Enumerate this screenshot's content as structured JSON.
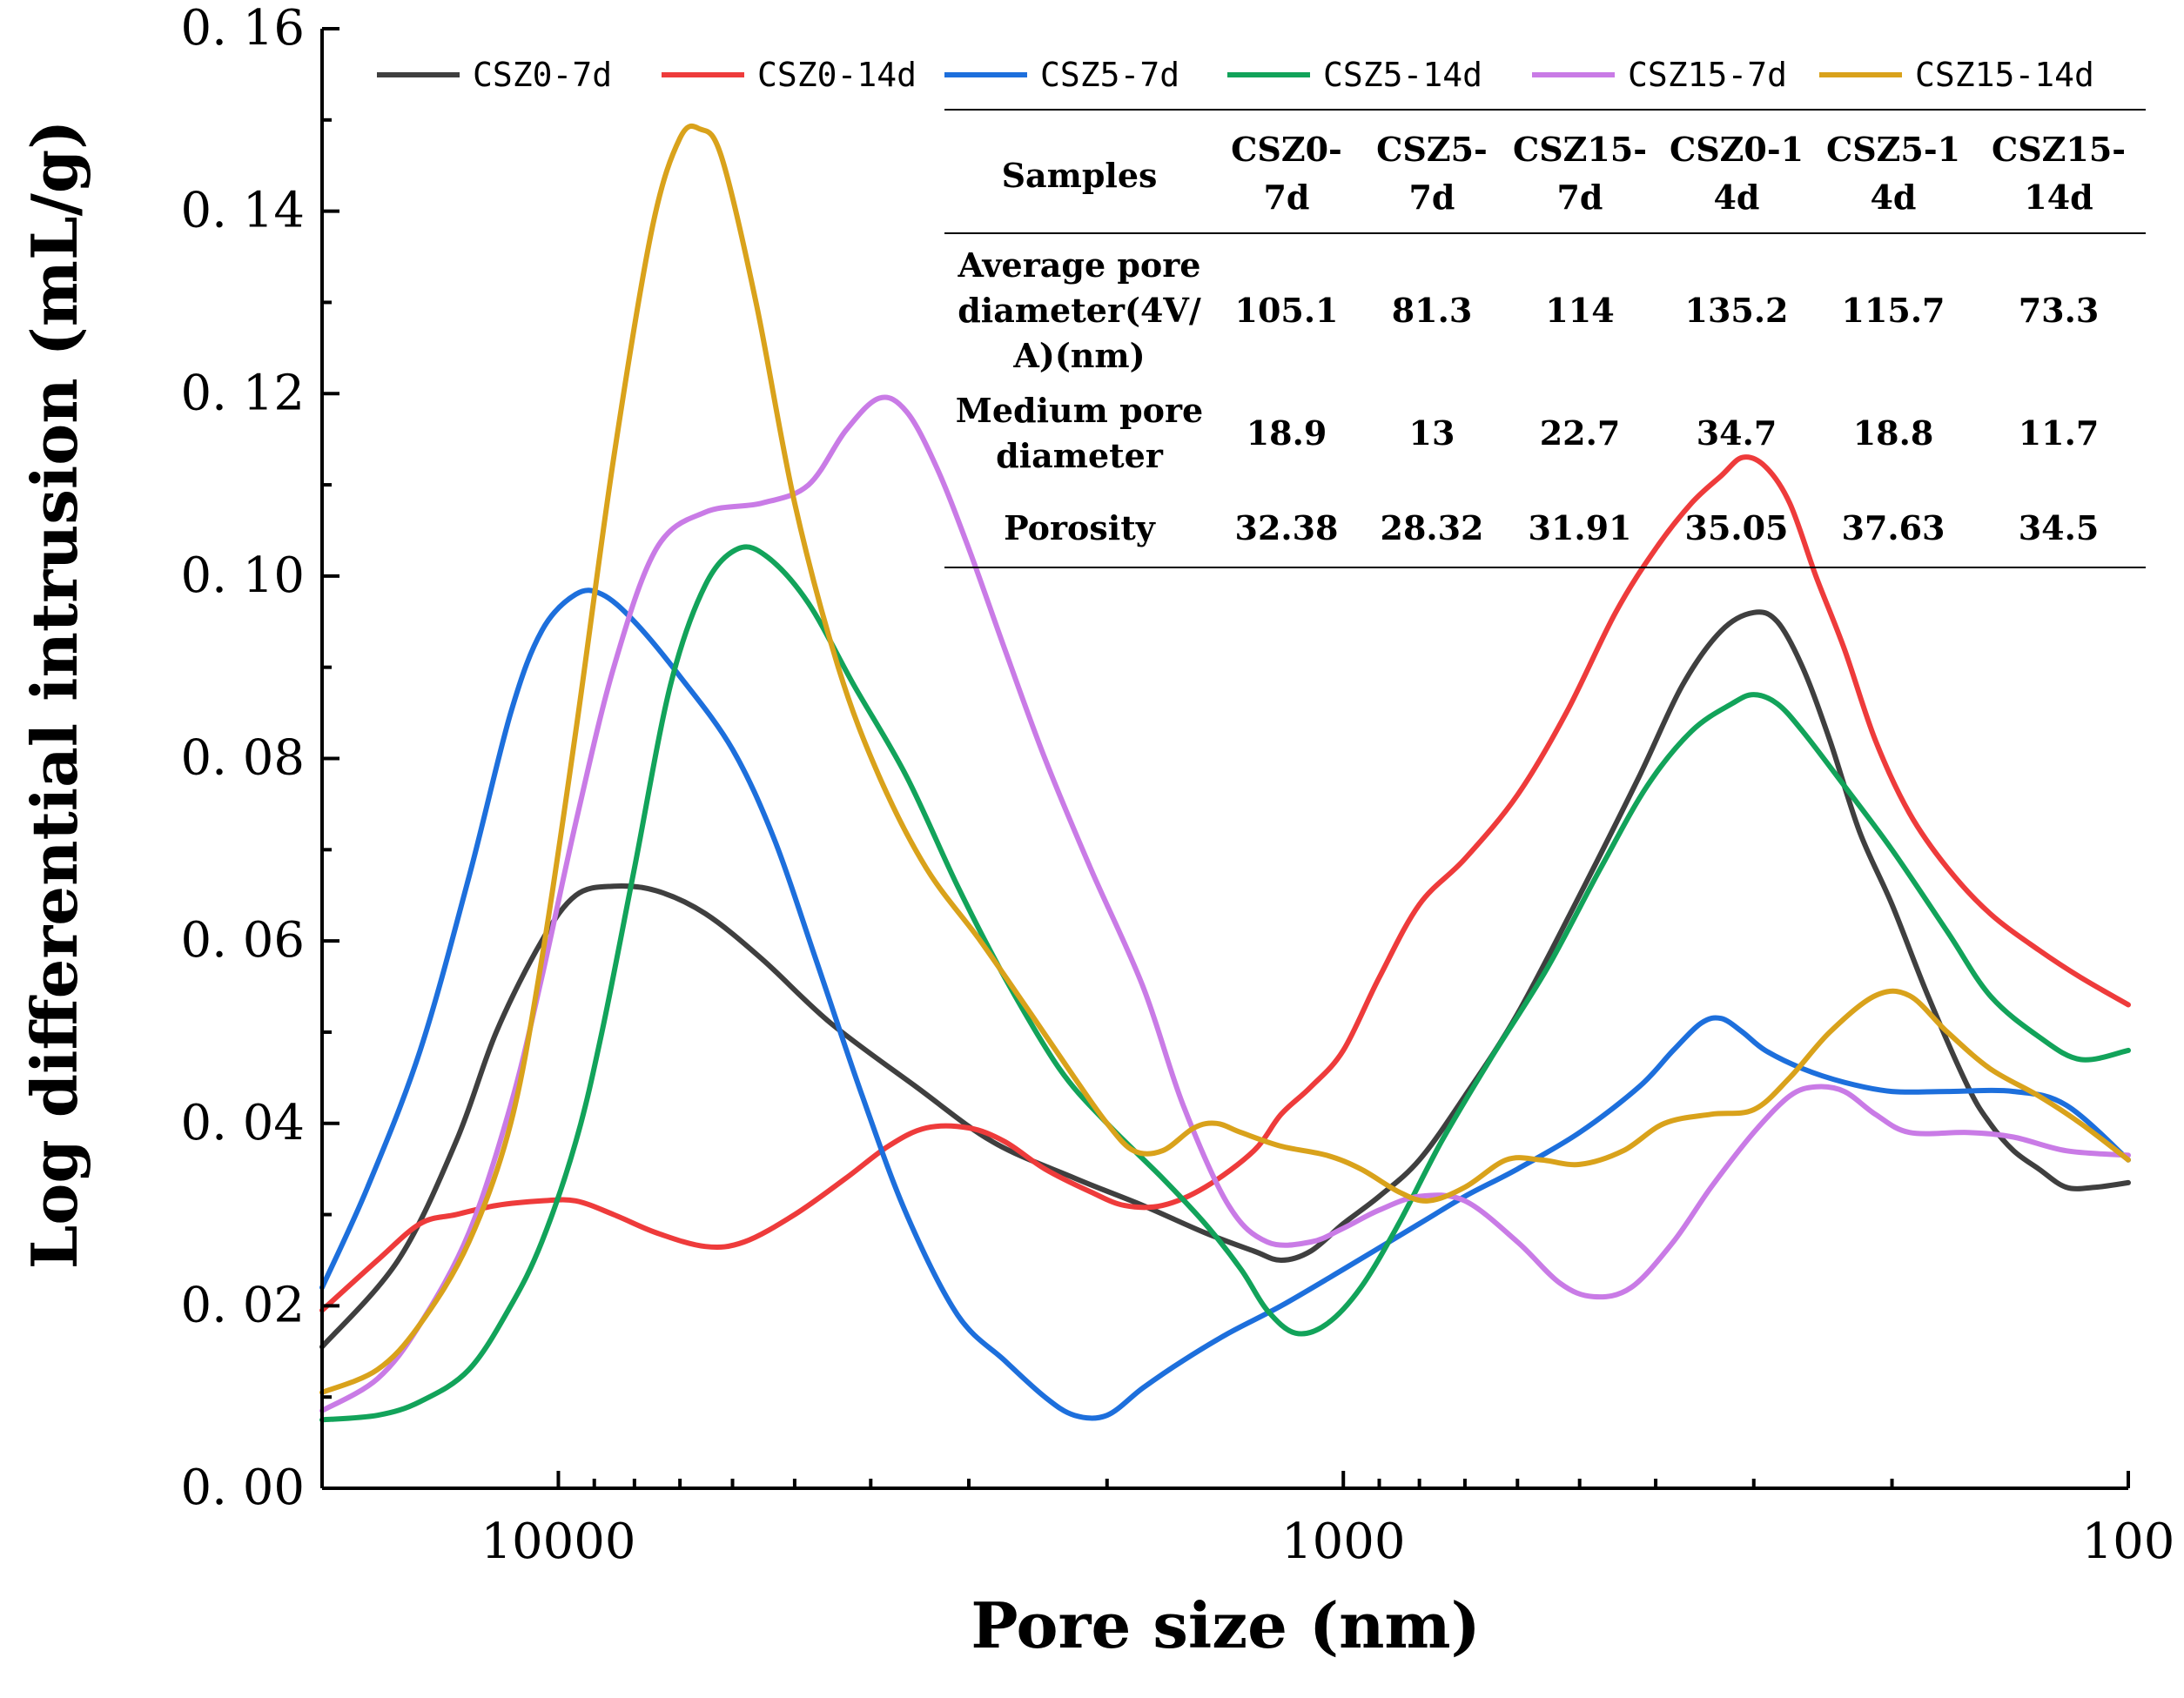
{
  "chart_data": {
    "type": "line",
    "xlabel": "Pore size (nm)",
    "ylabel": "Log differential intrusion (mL/g)",
    "x_scale": "log",
    "x_reversed": true,
    "xlim": [
      20000,
      100
    ],
    "ylim": [
      0,
      0.16
    ],
    "x_ticks": [
      10000,
      1000,
      100
    ],
    "x_tick_labels": [
      "10000",
      "1000",
      "100"
    ],
    "y_ticks": [
      0,
      0.02,
      0.04,
      0.06,
      0.08,
      0.1,
      0.12,
      0.14,
      0.16
    ],
    "y_tick_labels": [
      "0. 00",
      "0. 02",
      "0. 04",
      "0. 06",
      "0. 08",
      "0. 10",
      "0. 12",
      "0. 14",
      "0. 16"
    ],
    "grid": false,
    "legend_position": "top",
    "series": [
      {
        "name": "CSZ0-7d",
        "color": "#3f3f3f",
        "points": [
          [
            20000,
            0.0155
          ],
          [
            16000,
            0.025
          ],
          [
            13500,
            0.038
          ],
          [
            12000,
            0.05
          ],
          [
            10500,
            0.06
          ],
          [
            9500,
            0.065
          ],
          [
            8500,
            0.066
          ],
          [
            7500,
            0.0655
          ],
          [
            6500,
            0.063
          ],
          [
            5500,
            0.058
          ],
          [
            4500,
            0.051
          ],
          [
            3500,
            0.044
          ],
          [
            2800,
            0.038
          ],
          [
            2200,
            0.034
          ],
          [
            1800,
            0.031
          ],
          [
            1500,
            0.028
          ],
          [
            1300,
            0.026
          ],
          [
            1200,
            0.025
          ],
          [
            1100,
            0.026
          ],
          [
            1000,
            0.029
          ],
          [
            900,
            0.032
          ],
          [
            800,
            0.036
          ],
          [
            700,
            0.043
          ],
          [
            600,
            0.052
          ],
          [
            500,
            0.065
          ],
          [
            420,
            0.078
          ],
          [
            370,
            0.088
          ],
          [
            330,
            0.094
          ],
          [
            300,
            0.096
          ],
          [
            280,
            0.095
          ],
          [
            260,
            0.09
          ],
          [
            240,
            0.082
          ],
          [
            220,
            0.072
          ],
          [
            200,
            0.064
          ],
          [
            180,
            0.054
          ],
          [
            160,
            0.044
          ],
          [
            150,
            0.04
          ],
          [
            140,
            0.037
          ],
          [
            130,
            0.035
          ],
          [
            120,
            0.033
          ],
          [
            110,
            0.033
          ],
          [
            100,
            0.0335
          ]
        ]
      },
      {
        "name": "CSZ0-14d",
        "color": "#ee3b3b",
        "points": [
          [
            20000,
            0.0195
          ],
          [
            17000,
            0.025
          ],
          [
            15000,
            0.029
          ],
          [
            13500,
            0.03
          ],
          [
            12000,
            0.031
          ],
          [
            10500,
            0.0315
          ],
          [
            9500,
            0.0315
          ],
          [
            8500,
            0.03
          ],
          [
            7500,
            0.028
          ],
          [
            6500,
            0.0265
          ],
          [
            5800,
            0.027
          ],
          [
            5000,
            0.03
          ],
          [
            4300,
            0.034
          ],
          [
            3800,
            0.0375
          ],
          [
            3400,
            0.0395
          ],
          [
            3000,
            0.0395
          ],
          [
            2700,
            0.038
          ],
          [
            2400,
            0.035
          ],
          [
            2100,
            0.0325
          ],
          [
            1900,
            0.031
          ],
          [
            1700,
            0.031
          ],
          [
            1500,
            0.033
          ],
          [
            1300,
            0.037
          ],
          [
            1200,
            0.041
          ],
          [
            1100,
            0.044
          ],
          [
            1000,
            0.048
          ],
          [
            900,
            0.056
          ],
          [
            800,
            0.064
          ],
          [
            700,
            0.069
          ],
          [
            600,
            0.076
          ],
          [
            520,
            0.085
          ],
          [
            450,
            0.096
          ],
          [
            400,
            0.103
          ],
          [
            360,
            0.108
          ],
          [
            330,
            0.111
          ],
          [
            310,
            0.113
          ],
          [
            290,
            0.112
          ],
          [
            270,
            0.108
          ],
          [
            250,
            0.1
          ],
          [
            230,
            0.092
          ],
          [
            210,
            0.082
          ],
          [
            190,
            0.074
          ],
          [
            170,
            0.068
          ],
          [
            150,
            0.063
          ],
          [
            130,
            0.059
          ],
          [
            115,
            0.056
          ],
          [
            100,
            0.053
          ]
        ]
      },
      {
        "name": "CSZ5-7d",
        "color": "#1d6fdc",
        "points": [
          [
            20000,
            0.022
          ],
          [
            17500,
            0.033
          ],
          [
            15000,
            0.048
          ],
          [
            13000,
            0.067
          ],
          [
            11500,
            0.085
          ],
          [
            10500,
            0.094
          ],
          [
            9500,
            0.098
          ],
          [
            8800,
            0.098
          ],
          [
            8000,
            0.095
          ],
          [
            7000,
            0.089
          ],
          [
            6000,
            0.081
          ],
          [
            5300,
            0.071
          ],
          [
            4700,
            0.058
          ],
          [
            4100,
            0.043
          ],
          [
            3600,
            0.03
          ],
          [
            3100,
            0.019
          ],
          [
            2700,
            0.014
          ],
          [
            2400,
            0.01
          ],
          [
            2200,
            0.008
          ],
          [
            2000,
            0.008
          ],
          [
            1800,
            0.011
          ],
          [
            1600,
            0.014
          ],
          [
            1400,
            0.017
          ],
          [
            1200,
            0.02
          ],
          [
            1000,
            0.024
          ],
          [
            800,
            0.029
          ],
          [
            700,
            0.032
          ],
          [
            600,
            0.035
          ],
          [
            500,
            0.039
          ],
          [
            420,
            0.044
          ],
          [
            380,
            0.048
          ],
          [
            350,
            0.051
          ],
          [
            330,
            0.0515
          ],
          [
            310,
            0.05
          ],
          [
            290,
            0.048
          ],
          [
            260,
            0.046
          ],
          [
            230,
            0.0445
          ],
          [
            200,
            0.0435
          ],
          [
            170,
            0.0435
          ],
          [
            140,
            0.0435
          ],
          [
            120,
            0.042
          ],
          [
            100,
            0.036
          ]
        ]
      },
      {
        "name": "CSZ5-14d",
        "color": "#12a35a",
        "points": [
          [
            20000,
            0.0075
          ],
          [
            17000,
            0.008
          ],
          [
            15000,
            0.0095
          ],
          [
            13000,
            0.013
          ],
          [
            11500,
            0.02
          ],
          [
            10500,
            0.027
          ],
          [
            9500,
            0.038
          ],
          [
            8800,
            0.05
          ],
          [
            8000,
            0.068
          ],
          [
            7200,
            0.088
          ],
          [
            6500,
            0.099
          ],
          [
            5900,
            0.103
          ],
          [
            5400,
            0.102
          ],
          [
            4800,
            0.097
          ],
          [
            4200,
            0.088
          ],
          [
            3600,
            0.078
          ],
          [
            3100,
            0.066
          ],
          [
            2700,
            0.056
          ],
          [
            2300,
            0.046
          ],
          [
            2000,
            0.04
          ],
          [
            1700,
            0.034
          ],
          [
            1500,
            0.029
          ],
          [
            1350,
            0.024
          ],
          [
            1250,
            0.0195
          ],
          [
            1150,
            0.017
          ],
          [
            1050,
            0.018
          ],
          [
            950,
            0.022
          ],
          [
            850,
            0.029
          ],
          [
            750,
            0.038
          ],
          [
            650,
            0.047
          ],
          [
            550,
            0.057
          ],
          [
            470,
            0.068
          ],
          [
            410,
            0.077
          ],
          [
            360,
            0.083
          ],
          [
            320,
            0.086
          ],
          [
            300,
            0.087
          ],
          [
            280,
            0.086
          ],
          [
            260,
            0.083
          ],
          [
            230,
            0.077
          ],
          [
            200,
            0.07
          ],
          [
            170,
            0.061
          ],
          [
            150,
            0.054
          ],
          [
            130,
            0.0495
          ],
          [
            115,
            0.047
          ],
          [
            100,
            0.048
          ]
        ]
      },
      {
        "name": "CSZ15-7d",
        "color": "#c97be6",
        "points": [
          [
            20000,
            0.0085
          ],
          [
            17000,
            0.012
          ],
          [
            15000,
            0.018
          ],
          [
            13000,
            0.028
          ],
          [
            11500,
            0.042
          ],
          [
            10500,
            0.056
          ],
          [
            9500,
            0.073
          ],
          [
            8500,
            0.09
          ],
          [
            7500,
            0.103
          ],
          [
            6500,
            0.107
          ],
          [
            5500,
            0.108
          ],
          [
            4800,
            0.11
          ],
          [
            4300,
            0.116
          ],
          [
            3900,
            0.1195
          ],
          [
            3600,
            0.118
          ],
          [
            3300,
            0.112
          ],
          [
            3000,
            0.103
          ],
          [
            2700,
            0.092
          ],
          [
            2400,
            0.08
          ],
          [
            2100,
            0.068
          ],
          [
            1800,
            0.055
          ],
          [
            1600,
            0.042
          ],
          [
            1400,
            0.031
          ],
          [
            1250,
            0.027
          ],
          [
            1100,
            0.027
          ],
          [
            1000,
            0.0285
          ],
          [
            900,
            0.0305
          ],
          [
            800,
            0.032
          ],
          [
            700,
            0.0315
          ],
          [
            600,
            0.027
          ],
          [
            530,
            0.0225
          ],
          [
            480,
            0.021
          ],
          [
            430,
            0.022
          ],
          [
            380,
            0.027
          ],
          [
            340,
            0.033
          ],
          [
            300,
            0.039
          ],
          [
            270,
            0.043
          ],
          [
            250,
            0.044
          ],
          [
            230,
            0.0435
          ],
          [
            210,
            0.041
          ],
          [
            190,
            0.039
          ],
          [
            160,
            0.039
          ],
          [
            140,
            0.0385
          ],
          [
            120,
            0.037
          ],
          [
            100,
            0.0365
          ]
        ]
      },
      {
        "name": "CSZ15-14d",
        "color": "#d9a21b",
        "points": [
          [
            20000,
            0.0105
          ],
          [
            17000,
            0.013
          ],
          [
            15000,
            0.018
          ],
          [
            13000,
            0.027
          ],
          [
            11500,
            0.04
          ],
          [
            10500,
            0.058
          ],
          [
            9500,
            0.083
          ],
          [
            8500,
            0.113
          ],
          [
            7600,
            0.138
          ],
          [
            7000,
            0.148
          ],
          [
            6600,
            0.149
          ],
          [
            6200,
            0.146
          ],
          [
            5600,
            0.13
          ],
          [
            5000,
            0.108
          ],
          [
            4400,
            0.09
          ],
          [
            3900,
            0.078
          ],
          [
            3400,
            0.068
          ],
          [
            2900,
            0.06
          ],
          [
            2500,
            0.052
          ],
          [
            2200,
            0.045
          ],
          [
            2000,
            0.04
          ],
          [
            1850,
            0.037
          ],
          [
            1700,
            0.037
          ],
          [
            1550,
            0.0395
          ],
          [
            1450,
            0.04
          ],
          [
            1350,
            0.039
          ],
          [
            1200,
            0.0375
          ],
          [
            1050,
            0.0365
          ],
          [
            950,
            0.035
          ],
          [
            850,
            0.0325
          ],
          [
            780,
            0.0315
          ],
          [
            700,
            0.033
          ],
          [
            620,
            0.036
          ],
          [
            560,
            0.036
          ],
          [
            500,
            0.0355
          ],
          [
            440,
            0.037
          ],
          [
            390,
            0.04
          ],
          [
            340,
            0.041
          ],
          [
            300,
            0.0415
          ],
          [
            270,
            0.045
          ],
          [
            240,
            0.05
          ],
          [
            210,
            0.054
          ],
          [
            190,
            0.054
          ],
          [
            170,
            0.05
          ],
          [
            150,
            0.046
          ],
          [
            130,
            0.043
          ],
          [
            115,
            0.04
          ],
          [
            100,
            0.036
          ]
        ]
      }
    ],
    "table": {
      "header_label": "Samples",
      "columns": [
        [
          "CSZ0-",
          "7d"
        ],
        [
          "CSZ5-",
          "7d"
        ],
        [
          "CSZ15-",
          "7d"
        ],
        [
          "CSZ0-1",
          "4d"
        ],
        [
          "CSZ5-1",
          "4d"
        ],
        [
          "CSZ15-",
          "14d"
        ]
      ],
      "rows": [
        {
          "label": [
            "Average pore",
            "diameter(4V/",
            "A)(nm)"
          ],
          "values": [
            "105.1",
            "81.3",
            "114",
            "135.2",
            "115.7",
            "73.3"
          ]
        },
        {
          "label": [
            "Medium pore",
            "diameter"
          ],
          "values": [
            "18.9",
            "13",
            "22.7",
            "34.7",
            "18.8",
            "11.7"
          ]
        },
        {
          "label": [
            "Porosity"
          ],
          "values": [
            "32.38",
            "28.32",
            "31.91",
            "35.05",
            "37.63",
            "34.5"
          ]
        }
      ]
    }
  }
}
